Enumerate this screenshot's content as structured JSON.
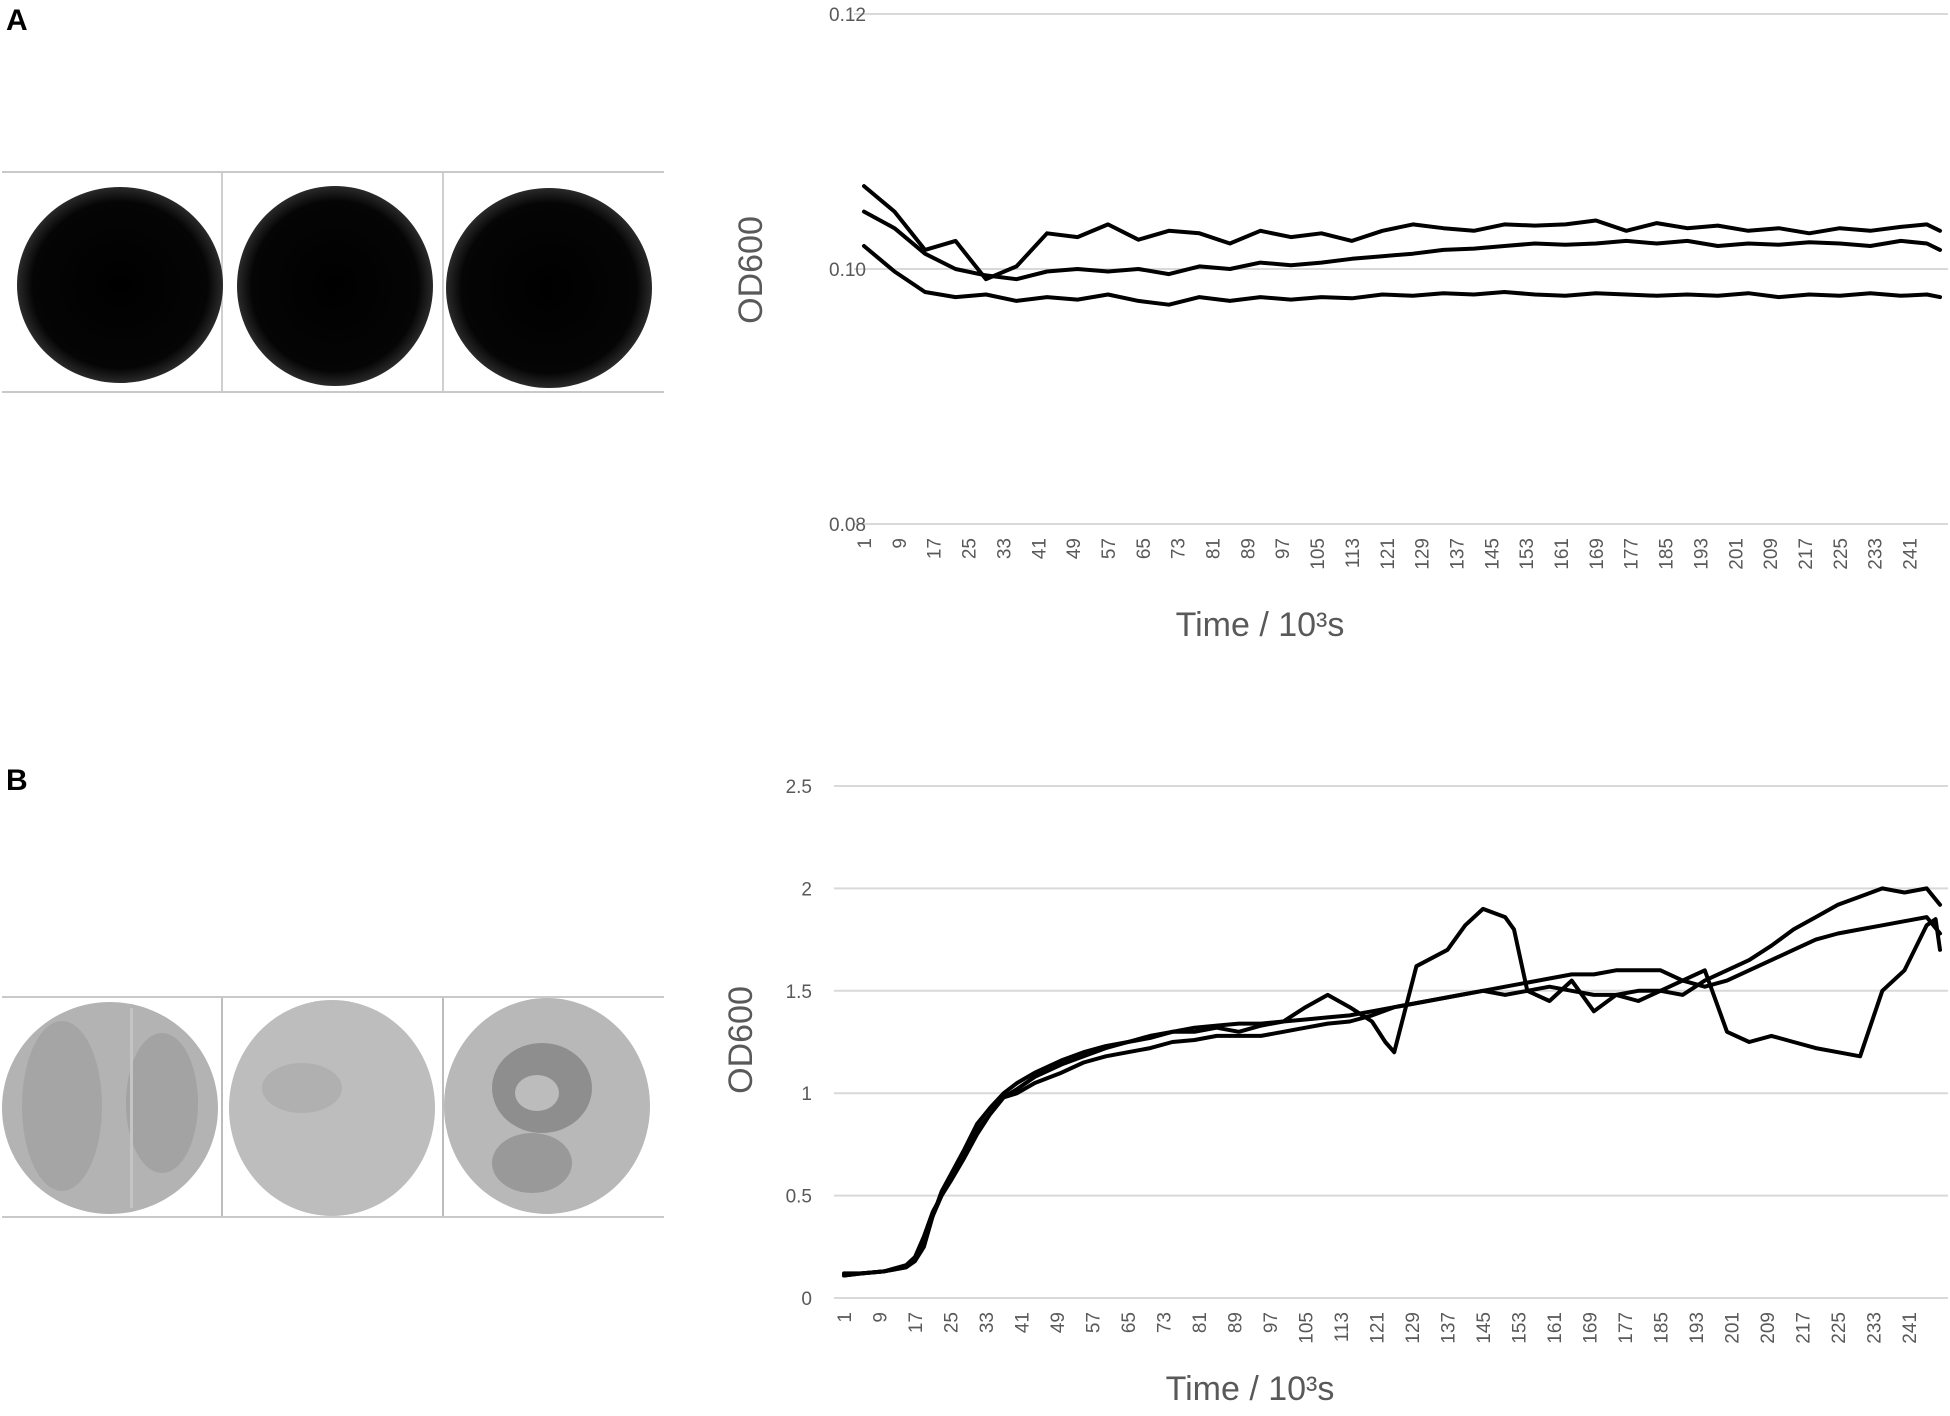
{
  "figure": {
    "panels": [
      {
        "letter": "A",
        "wells": [
          {
            "kind": "dark"
          },
          {
            "kind": "dark"
          },
          {
            "kind": "dark"
          }
        ]
      },
      {
        "letter": "B",
        "wells": [
          {
            "kind": "light-split"
          },
          {
            "kind": "light"
          },
          {
            "kind": "light-mottled"
          }
        ]
      }
    ]
  },
  "chart_data": [
    {
      "type": "line",
      "panel": "A",
      "title": "",
      "xlabel": "Time / 10³s",
      "ylabel": "OD600",
      "ylim": [
        0.08,
        0.12
      ],
      "yticks": [
        "0.08",
        "0.10",
        "0.12"
      ],
      "ytick_values": [
        0.08,
        0.1,
        0.12
      ],
      "xlim": [
        1,
        248
      ],
      "xticks": [
        "1",
        "9",
        "17",
        "25",
        "33",
        "41",
        "49",
        "57",
        "65",
        "73",
        "81",
        "89",
        "97",
        "105",
        "113",
        "121",
        "129",
        "137",
        "145",
        "153",
        "161",
        "169",
        "177",
        "185",
        "193",
        "201",
        "209",
        "217",
        "225",
        "233",
        "241"
      ],
      "grid": true,
      "line_color": "#000000",
      "series": [
        {
          "x": [
            1,
            8,
            15,
            22,
            29,
            36,
            43,
            50,
            57,
            64,
            71,
            78,
            85,
            92,
            99,
            106,
            113,
            120,
            127,
            134,
            141,
            148,
            155,
            162,
            169,
            176,
            183,
            190,
            197,
            204,
            211,
            218,
            225,
            232,
            239,
            245,
            248
          ],
          "values": [
            0.1065,
            0.1045,
            0.1015,
            0.1022,
            0.0992,
            0.1002,
            0.1028,
            0.1025,
            0.1035,
            0.1023,
            0.103,
            0.1028,
            0.102,
            0.103,
            0.1025,
            0.1028,
            0.1022,
            0.103,
            0.1035,
            0.1032,
            0.103,
            0.1035,
            0.1034,
            0.1035,
            0.1038,
            0.103,
            0.1036,
            0.1032,
            0.1034,
            0.103,
            0.1032,
            0.1028,
            0.1032,
            0.103,
            0.1033,
            0.1035,
            0.103
          ]
        },
        {
          "x": [
            1,
            8,
            15,
            22,
            29,
            36,
            43,
            50,
            57,
            64,
            71,
            78,
            85,
            92,
            99,
            106,
            113,
            120,
            127,
            134,
            141,
            148,
            155,
            162,
            169,
            176,
            183,
            190,
            197,
            204,
            211,
            218,
            225,
            232,
            239,
            245,
            248
          ],
          "values": [
            0.1045,
            0.1032,
            0.1012,
            0.1,
            0.0995,
            0.0992,
            0.0998,
            0.1,
            0.0998,
            0.1,
            0.0996,
            0.1002,
            0.1,
            0.1005,
            0.1003,
            0.1005,
            0.1008,
            0.101,
            0.1012,
            0.1015,
            0.1016,
            0.1018,
            0.102,
            0.1019,
            0.102,
            0.1022,
            0.102,
            0.1022,
            0.1018,
            0.102,
            0.1019,
            0.1021,
            0.102,
            0.1018,
            0.1022,
            0.102,
            0.1015
          ]
        },
        {
          "x": [
            1,
            8,
            15,
            22,
            29,
            36,
            43,
            50,
            57,
            64,
            71,
            78,
            85,
            92,
            99,
            106,
            113,
            120,
            127,
            134,
            141,
            148,
            155,
            162,
            169,
            176,
            183,
            190,
            197,
            204,
            211,
            218,
            225,
            232,
            239,
            245,
            248
          ],
          "values": [
            0.1018,
            0.0998,
            0.0982,
            0.0978,
            0.098,
            0.0975,
            0.0978,
            0.0976,
            0.098,
            0.0975,
            0.0972,
            0.0978,
            0.0975,
            0.0978,
            0.0976,
            0.0978,
            0.0977,
            0.098,
            0.0979,
            0.0981,
            0.098,
            0.0982,
            0.098,
            0.0979,
            0.0981,
            0.098,
            0.0979,
            0.098,
            0.0979,
            0.0981,
            0.0978,
            0.098,
            0.0979,
            0.0981,
            0.0979,
            0.098,
            0.0978
          ]
        }
      ]
    },
    {
      "type": "line",
      "panel": "B",
      "title": "",
      "xlabel": "Time / 10³s",
      "ylabel": "OD600",
      "ylim": [
        0,
        2.5
      ],
      "yticks": [
        "0",
        "0.5",
        "1",
        "1.5",
        "2",
        "2.5"
      ],
      "ytick_values": [
        0,
        0.5,
        1,
        1.5,
        2,
        2.5
      ],
      "xlim": [
        1,
        248
      ],
      "xticks": [
        "1",
        "9",
        "17",
        "25",
        "33",
        "41",
        "49",
        "57",
        "65",
        "73",
        "81",
        "89",
        "97",
        "105",
        "113",
        "121",
        "129",
        "137",
        "145",
        "153",
        "161",
        "169",
        "177",
        "185",
        "193",
        "201",
        "209",
        "217",
        "225",
        "233",
        "241"
      ],
      "grid": true,
      "line_color": "#000000",
      "series": [
        {
          "x": [
            1,
            5,
            10,
            15,
            17,
            19,
            21,
            23,
            25,
            28,
            31,
            34,
            37,
            40,
            44,
            50,
            55,
            60,
            65,
            70,
            75,
            80,
            85,
            90,
            95,
            100,
            105,
            110,
            115,
            120,
            123,
            125,
            130,
            137,
            141,
            145,
            150,
            152,
            155,
            160,
            165,
            170,
            175,
            180,
            185,
            190,
            195,
            200,
            205,
            210,
            215,
            220,
            225,
            230,
            235,
            240,
            245,
            247,
            248
          ],
          "values": [
            0.12,
            0.12,
            0.13,
            0.15,
            0.18,
            0.25,
            0.4,
            0.52,
            0.6,
            0.72,
            0.85,
            0.93,
            1.0,
            1.05,
            1.1,
            1.16,
            1.2,
            1.23,
            1.25,
            1.28,
            1.3,
            1.3,
            1.32,
            1.3,
            1.33,
            1.35,
            1.42,
            1.48,
            1.42,
            1.35,
            1.25,
            1.2,
            1.62,
            1.7,
            1.82,
            1.9,
            1.86,
            1.8,
            1.5,
            1.45,
            1.55,
            1.4,
            1.48,
            1.45,
            1.5,
            1.55,
            1.6,
            1.3,
            1.25,
            1.28,
            1.25,
            1.22,
            1.2,
            1.18,
            1.5,
            1.6,
            1.82,
            1.85,
            1.7
          ]
        },
        {
          "x": [
            1,
            5,
            10,
            15,
            17,
            19,
            21,
            23,
            25,
            28,
            31,
            34,
            37,
            40,
            44,
            50,
            55,
            60,
            65,
            70,
            75,
            80,
            85,
            90,
            95,
            100,
            105,
            110,
            115,
            120,
            125,
            130,
            135,
            140,
            145,
            150,
            155,
            160,
            165,
            170,
            175,
            180,
            185,
            190,
            195,
            200,
            205,
            210,
            215,
            220,
            225,
            230,
            235,
            240,
            245,
            248
          ],
          "values": [
            0.11,
            0.12,
            0.13,
            0.16,
            0.2,
            0.3,
            0.42,
            0.5,
            0.58,
            0.7,
            0.82,
            0.9,
            0.98,
            1.0,
            1.05,
            1.1,
            1.15,
            1.18,
            1.2,
            1.22,
            1.25,
            1.26,
            1.28,
            1.28,
            1.28,
            1.3,
            1.32,
            1.34,
            1.35,
            1.38,
            1.42,
            1.44,
            1.46,
            1.48,
            1.5,
            1.52,
            1.54,
            1.56,
            1.58,
            1.58,
            1.6,
            1.6,
            1.6,
            1.55,
            1.52,
            1.55,
            1.6,
            1.65,
            1.7,
            1.75,
            1.78,
            1.8,
            1.82,
            1.84,
            1.86,
            1.78
          ]
        },
        {
          "x": [
            1,
            5,
            10,
            15,
            17,
            19,
            21,
            23,
            25,
            28,
            31,
            34,
            37,
            40,
            44,
            50,
            55,
            60,
            65,
            70,
            75,
            80,
            85,
            90,
            95,
            100,
            105,
            110,
            115,
            120,
            125,
            130,
            135,
            140,
            145,
            150,
            155,
            160,
            165,
            170,
            175,
            180,
            185,
            190,
            195,
            200,
            205,
            210,
            215,
            220,
            225,
            230,
            235,
            240,
            245,
            248
          ],
          "values": [
            0.11,
            0.12,
            0.13,
            0.15,
            0.19,
            0.28,
            0.4,
            0.5,
            0.57,
            0.68,
            0.8,
            0.9,
            0.98,
            1.02,
            1.08,
            1.14,
            1.18,
            1.22,
            1.25,
            1.27,
            1.3,
            1.32,
            1.33,
            1.34,
            1.34,
            1.35,
            1.36,
            1.37,
            1.38,
            1.4,
            1.42,
            1.44,
            1.46,
            1.48,
            1.5,
            1.48,
            1.5,
            1.52,
            1.5,
            1.48,
            1.48,
            1.5,
            1.5,
            1.48,
            1.55,
            1.6,
            1.65,
            1.72,
            1.8,
            1.86,
            1.92,
            1.96,
            2.0,
            1.98,
            2.0,
            1.92
          ]
        }
      ]
    }
  ]
}
